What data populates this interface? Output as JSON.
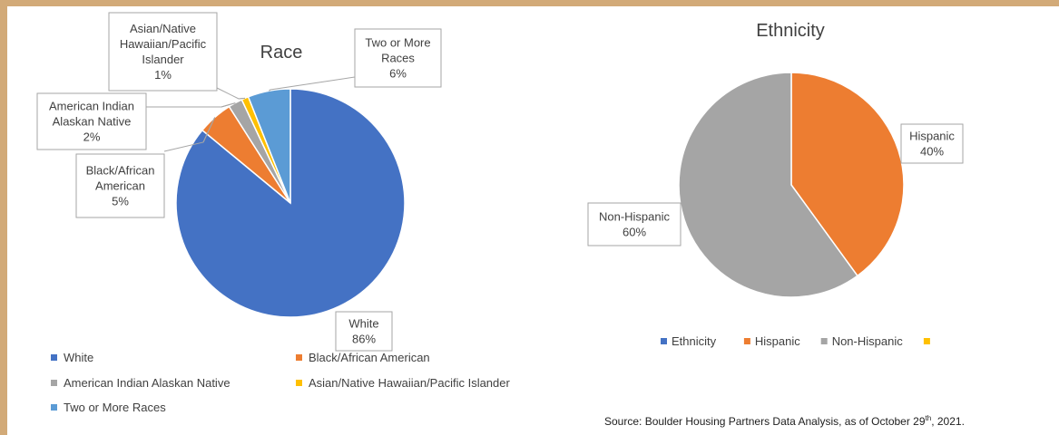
{
  "chart_data": [
    {
      "type": "pie",
      "title": "Race",
      "categories": [
        "White",
        "Black/African American",
        "American Indian Alaskan Native",
        "Asian/Native Hawaiian/Pacific Islander",
        "Two or More Races"
      ],
      "values": [
        86,
        5,
        2,
        1,
        6
      ],
      "labels": [
        {
          "lines": [
            "White",
            "86%"
          ]
        },
        {
          "lines": [
            "Black/African",
            "American",
            "5%"
          ]
        },
        {
          "lines": [
            "American Indian",
            "Alaskan Native",
            "2%"
          ]
        },
        {
          "lines": [
            "Asian/Native",
            "Hawaiian/Pacific",
            "Islander",
            "1%"
          ]
        },
        {
          "lines": [
            "Two or More",
            "Races",
            "6%"
          ]
        }
      ],
      "colors": [
        "#4472c4",
        "#ed7d31",
        "#a5a5a5",
        "#ffc000",
        "#5b9bd5"
      ],
      "legend": [
        "White",
        "Black/African American",
        "American Indian Alaskan Native",
        "Asian/Native Hawaiian/Pacific Islander",
        "Two or More Races"
      ],
      "legend_position": "bottom"
    },
    {
      "type": "pie",
      "title": "Ethnicity",
      "categories": [
        "Hispanic",
        "Non-Hispanic"
      ],
      "values": [
        40,
        60
      ],
      "labels": [
        {
          "lines": [
            "Hispanic",
            "40%"
          ]
        },
        {
          "lines": [
            "Non-Hispanic",
            "60%"
          ]
        }
      ],
      "colors": [
        "#ed7d31",
        "#a5a5a5"
      ],
      "legend": [
        {
          "name": "Ethnicity",
          "color": "#4472c4"
        },
        {
          "name": "Hispanic",
          "color": "#ed7d31"
        },
        {
          "name": "Non-Hispanic",
          "color": "#a5a5a5"
        },
        {
          "name": "",
          "color": "#ffc000"
        }
      ],
      "legend_position": "bottom"
    }
  ],
  "source": {
    "text_before": "Source: Boulder Housing Partners Data Analysis, as of October 29",
    "superscript": "th",
    "text_after": ", 2021."
  }
}
